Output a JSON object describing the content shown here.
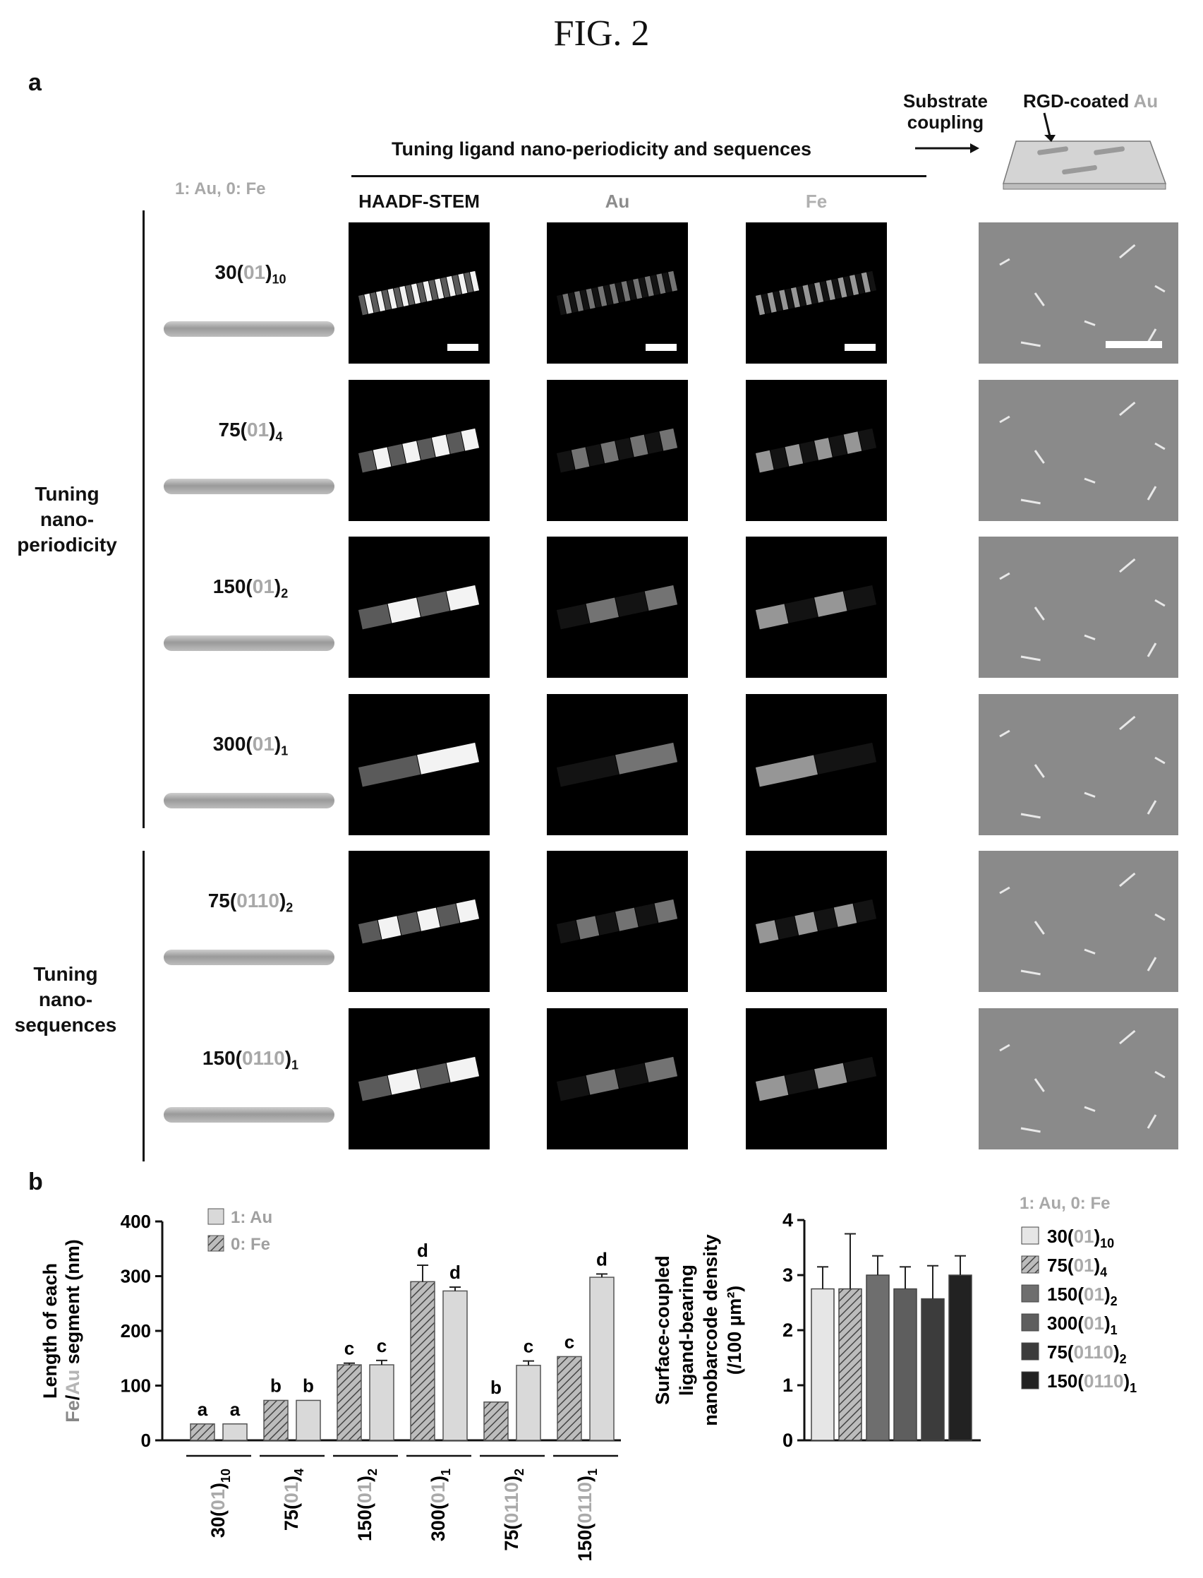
{
  "figure_title": "FIG. 2",
  "panel_a": {
    "letter": "a",
    "top_label": "Tuning ligand nano-periodicity and sequences",
    "substrate_coupling": [
      "Substrate",
      "coupling"
    ],
    "rgd_label_prefix": "RGD-coated ",
    "rgd_label_au": "Au",
    "legend": {
      "one": "1",
      "one_val": ": Au, ",
      "zero": "0",
      "zero_val": ": Fe"
    },
    "col_headers": [
      "HAADF-STEM",
      "Au",
      "Fe"
    ],
    "group_labels": {
      "periodicity": [
        "Tuning",
        "nano-",
        "periodicity"
      ],
      "sequences": [
        "Tuning",
        "nano-",
        "sequences"
      ]
    },
    "rows": [
      {
        "pre": "30(",
        "code": "01",
        "post": ")",
        "sub": "10",
        "segments": 20
      },
      {
        "pre": "75(",
        "code": "01",
        "post": ")",
        "sub": "4",
        "segments": 8
      },
      {
        "pre": "150(",
        "code": "01",
        "post": ")",
        "sub": "2",
        "segments": 4
      },
      {
        "pre": "300(",
        "code": "01",
        "post": ")",
        "sub": "1",
        "segments": 2
      },
      {
        "pre": "75(",
        "code": "0110",
        "post": ")",
        "sub": "2",
        "segments": 6
      },
      {
        "pre": "150(",
        "code": "0110",
        "post": ")",
        "sub": "1",
        "segments": 4
      }
    ]
  },
  "panel_b": {
    "letter": "b",
    "legend_right": {
      "one": "1",
      "one_val": ": Au, ",
      "zero": "0",
      "zero_val": ": Fe"
    },
    "colors": {
      "au_bar": "#d9d9d9",
      "fe_bar": "#8c8c8c"
    }
  },
  "chart_data": [
    {
      "type": "bar",
      "ylabel_lines": [
        "Length of each",
        "Fe/Au segment (nm)"
      ],
      "ylim": [
        0,
        400
      ],
      "yticks": [
        0,
        100,
        200,
        300,
        400
      ],
      "legend": [
        {
          "code": "1",
          "name": ": Au"
        },
        {
          "code": "0",
          "name": ": Fe"
        }
      ],
      "categories": [
        {
          "pre": "30(",
          "code": "01",
          "post": ")",
          "sub": "10"
        },
        {
          "pre": "75(",
          "code": "01",
          "post": ")",
          "sub": "4"
        },
        {
          "pre": "150(",
          "code": "01",
          "post": ")",
          "sub": "2"
        },
        {
          "pre": "300(",
          "code": "01",
          "post": ")",
          "sub": "1"
        },
        {
          "pre": "75(",
          "code": "0110",
          "post": ")",
          "sub": "2"
        },
        {
          "pre": "150(",
          "code": "0110",
          "post": ")",
          "sub": "1"
        }
      ],
      "series": [
        {
          "name": "0: Fe",
          "values": [
            30,
            73,
            138,
            290,
            70,
            153
          ],
          "errors": [
            0,
            0,
            3,
            30,
            0,
            0
          ],
          "letters": [
            "a",
            "b",
            "c",
            "d",
            "b",
            "c"
          ]
        },
        {
          "name": "1: Au",
          "values": [
            30,
            73,
            138,
            273,
            137,
            298
          ],
          "errors": [
            0,
            0,
            8,
            7,
            8,
            6
          ],
          "letters": [
            "a",
            "b",
            "c",
            "d",
            "c",
            "d"
          ]
        }
      ]
    },
    {
      "type": "bar",
      "ylabel_lines": [
        "Surface-coupled",
        "ligand-bearing",
        "nanobarcode density",
        "(/100 µm²)"
      ],
      "ylim": [
        0,
        4
      ],
      "yticks": [
        0,
        1,
        2,
        3,
        4
      ],
      "categories": [
        "30(01)10",
        "75(01)4",
        "150(01)2",
        "300(01)1",
        "75(0110)2",
        "150(0110)1"
      ],
      "values": [
        2.75,
        2.75,
        3.0,
        2.75,
        2.57,
        3.0
      ],
      "errors": [
        0.4,
        1.0,
        0.35,
        0.4,
        0.6,
        0.35
      ],
      "legend": [
        {
          "pre": "30(",
          "code": "01",
          "post": ")",
          "sub": "10"
        },
        {
          "pre": "75(",
          "code": "01",
          "post": ")",
          "sub": "4"
        },
        {
          "pre": "150(",
          "code": "01",
          "post": ")",
          "sub": "2"
        },
        {
          "pre": "300(",
          "code": "01",
          "post": ")",
          "sub": "1"
        },
        {
          "pre": "75(",
          "code": "0110",
          "post": ")",
          "sub": "2"
        },
        {
          "pre": "150(",
          "code": "0110",
          "post": ")",
          "sub": "1"
        }
      ],
      "bar_colors": [
        "#e6e6e6",
        "#a9a9a9",
        "#6e6e6e",
        "#5e5e5e",
        "#3c3c3c",
        "#222222"
      ]
    }
  ]
}
